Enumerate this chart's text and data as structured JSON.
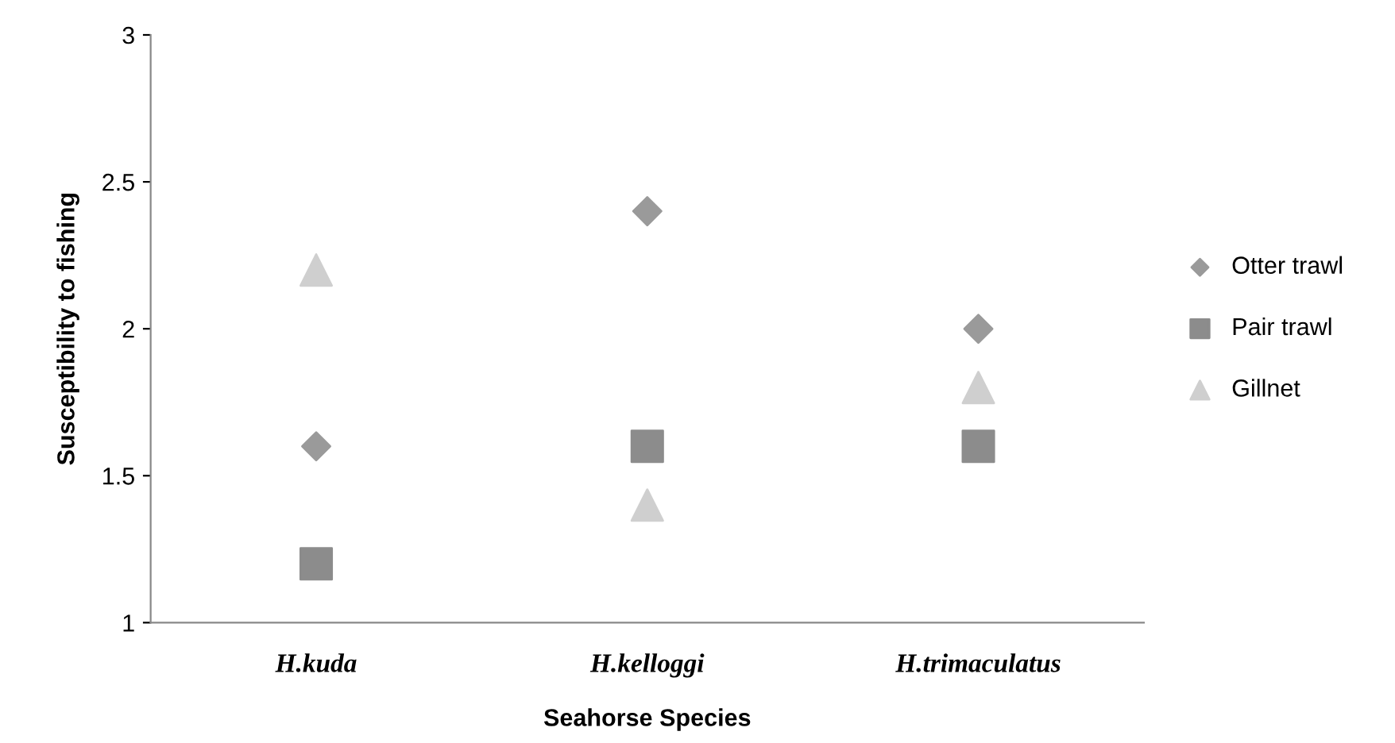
{
  "chart_data": {
    "type": "scatter",
    "xlabel": "Seahorse Species",
    "ylabel": "Susceptibility to fishing",
    "categories": [
      "H.kuda",
      "H.kelloggi",
      "H.trimaculatus"
    ],
    "series": [
      {
        "name": "Otter trawl",
        "color": "#9a9a9a",
        "marker": "diamond",
        "values": [
          1.6,
          2.4,
          2.0
        ]
      },
      {
        "name": "Pair trawl",
        "color": "#8c8c8c",
        "marker": "square",
        "values": [
          1.2,
          1.6,
          1.6
        ]
      },
      {
        "name": "Gillnet",
        "color": "#cfcfcf",
        "marker": "triangle",
        "values": [
          2.2,
          1.4,
          1.8
        ]
      }
    ],
    "ylim": [
      1,
      3
    ],
    "yticks": [
      1,
      1.5,
      2,
      2.5,
      3
    ],
    "grid": false,
    "legend": "right"
  }
}
